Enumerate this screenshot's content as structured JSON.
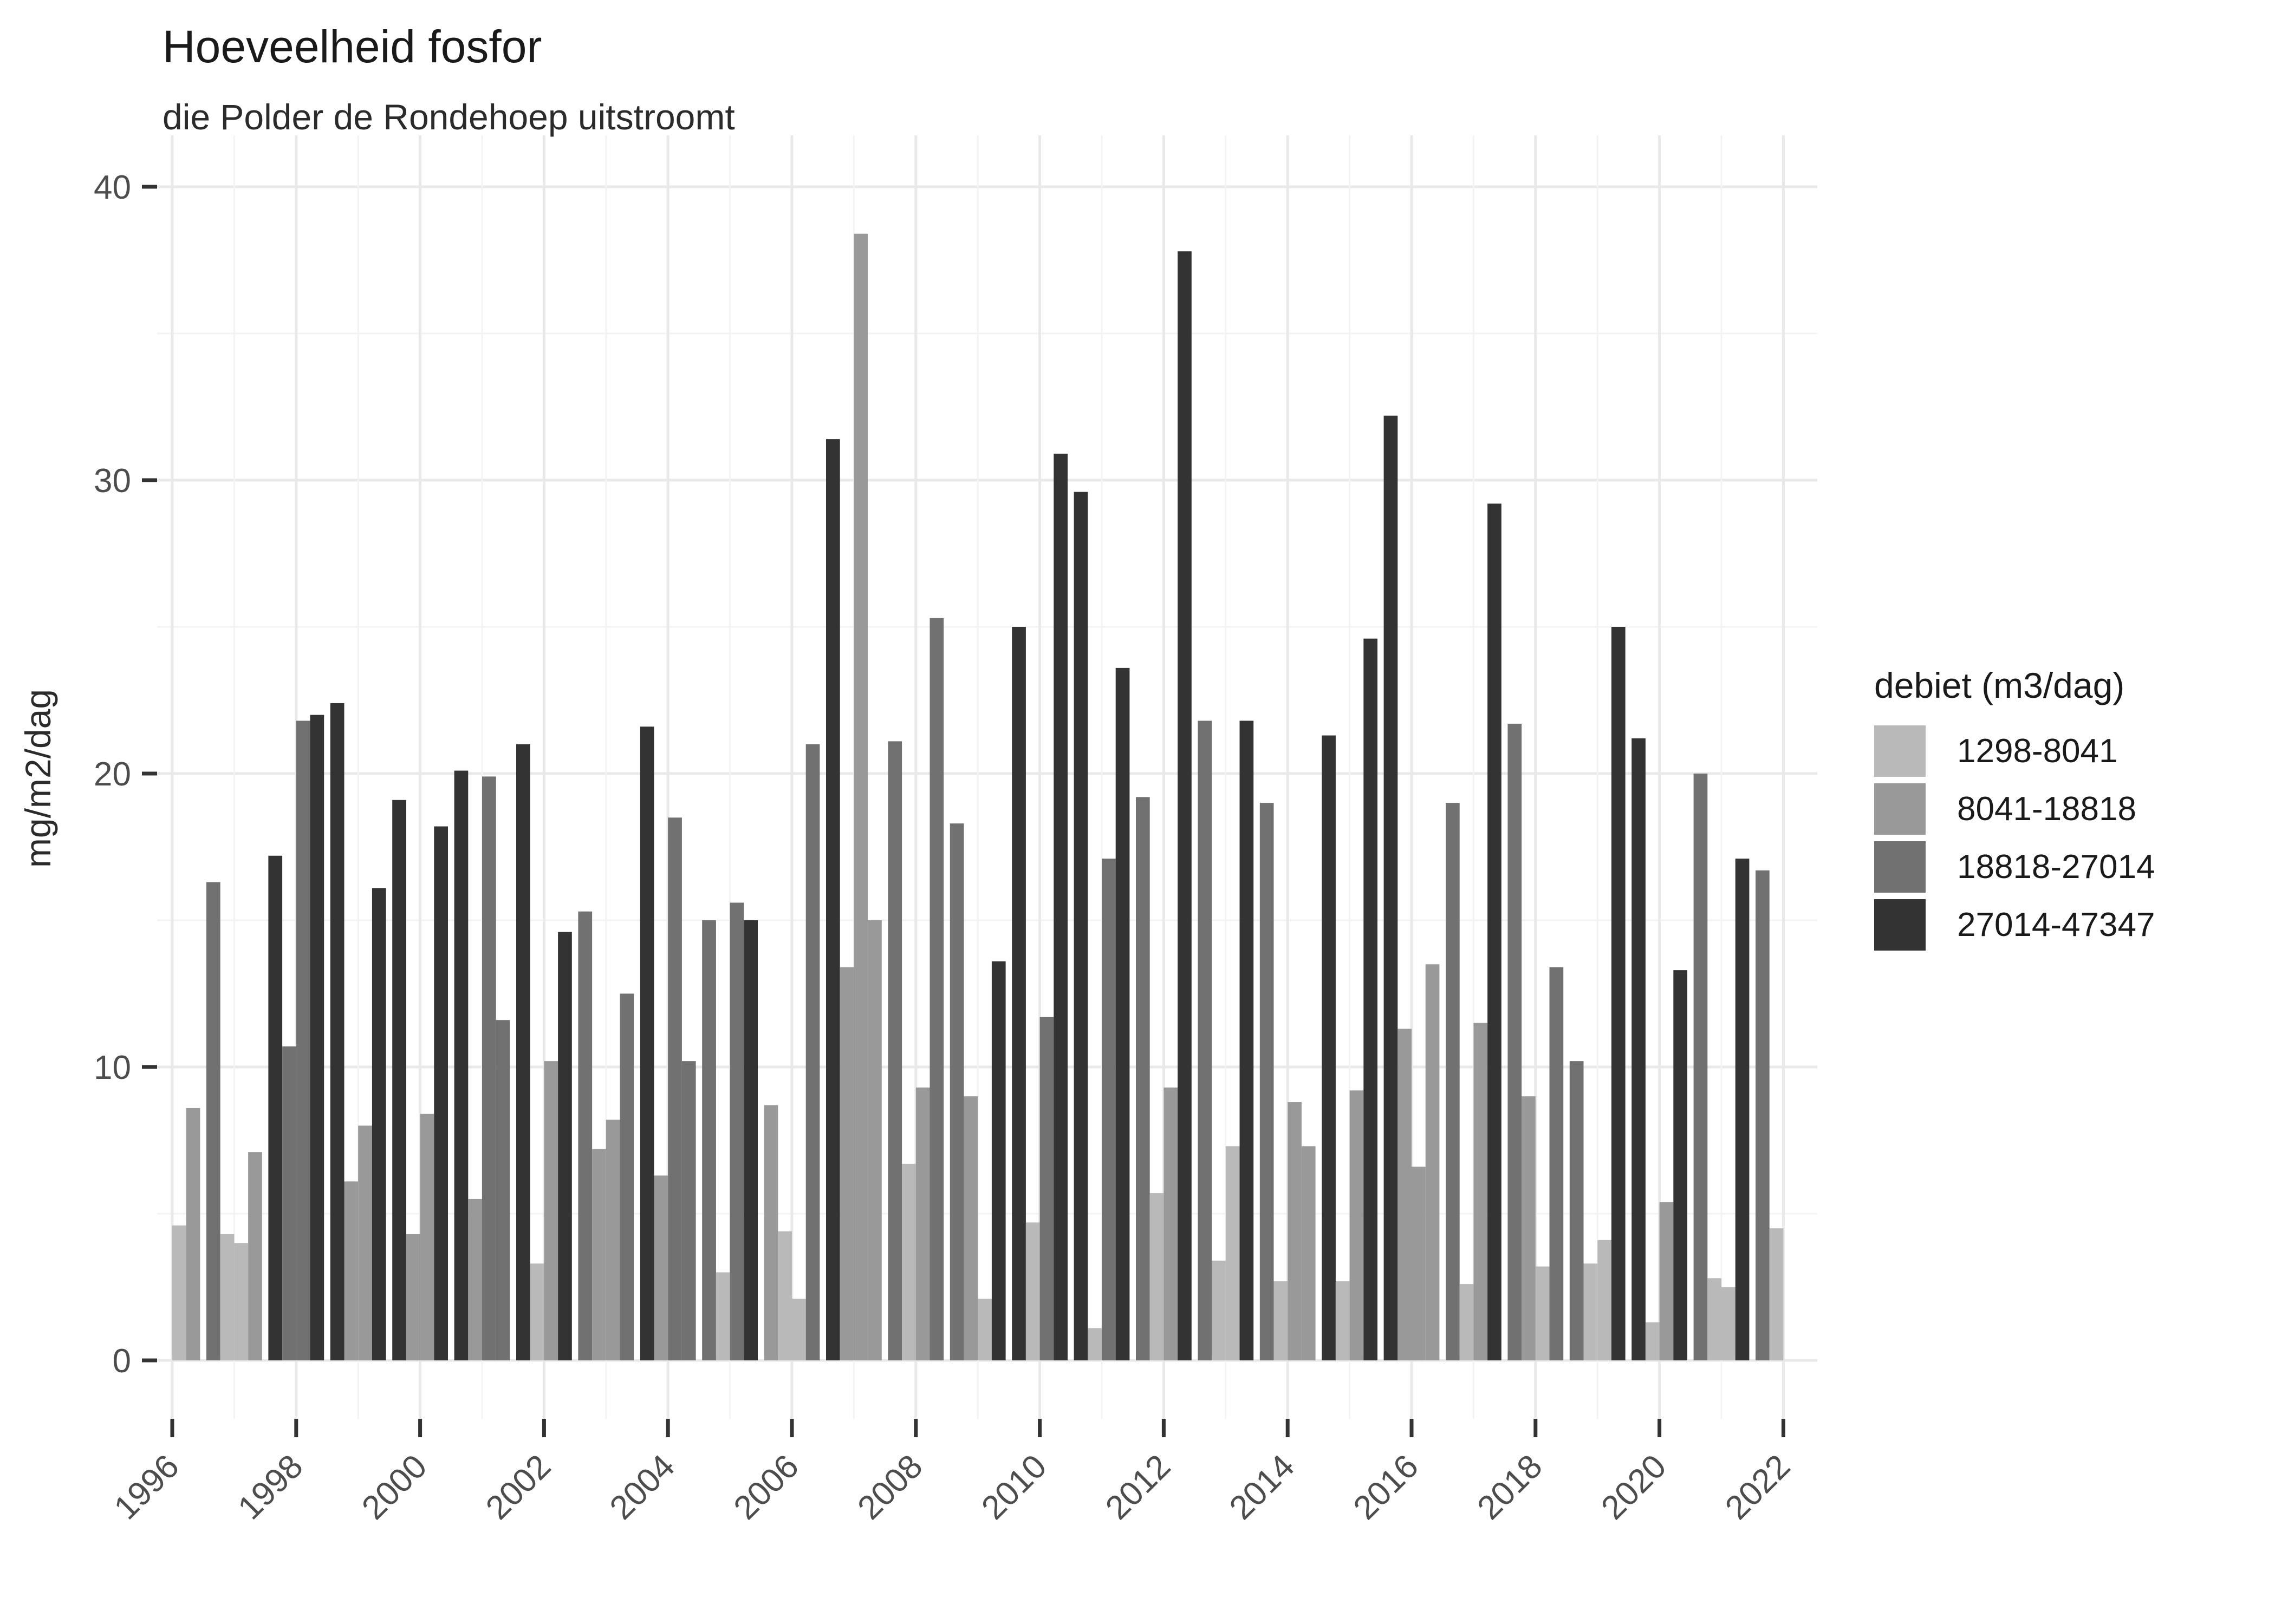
{
  "title": "Hoeveelheid fosfor",
  "subtitle": "die Polder de Rondehoep uitstroomt",
  "y_axis": {
    "label": "mg/m2/dag",
    "ticks": [
      0,
      10,
      20,
      30,
      40
    ]
  },
  "x_axis": {
    "tick_years": [
      1996,
      1998,
      2000,
      2002,
      2004,
      2006,
      2008,
      2010,
      2012,
      2014,
      2016,
      2018,
      2020,
      2022
    ]
  },
  "legend": {
    "title": "debiet (m3/dag)",
    "items": [
      {
        "label": "1298-8041",
        "color": "#b9b9b9"
      },
      {
        "label": "8041-18818",
        "color": "#999999"
      },
      {
        "label": "18818-27014",
        "color": "#717171"
      },
      {
        "label": "27014-47347",
        "color": "#333333"
      }
    ]
  },
  "chart_data": {
    "type": "bar",
    "title": "Hoeveelheid fosfor",
    "subtitle": "die Polder de Rondehoep uitstroomt",
    "ylabel": "mg/m2/dag",
    "xlabel": "",
    "ylim": [
      0,
      40
    ],
    "grid": true,
    "legend_position": "right",
    "legend_title": "debiet (m3/dag)",
    "classes": [
      "1298-8041",
      "8041-18818",
      "18818-27014",
      "27014-47347"
    ],
    "note": "q = quarter slot within year (1-4), v = mg/m2/dag, c = index into classes (debiet bin)",
    "years": [
      {
        "year": 1996,
        "bars": [
          {
            "q": 3,
            "v": 4.6,
            "c": 0
          },
          {
            "q": 4,
            "v": 8.6,
            "c": 1
          }
        ]
      },
      {
        "year": 1997,
        "bars": [
          {
            "q": 1,
            "v": 16.3,
            "c": 2
          },
          {
            "q": 2,
            "v": 4.3,
            "c": 0
          },
          {
            "q": 3,
            "v": 4.0,
            "c": 0
          },
          {
            "q": 4,
            "v": 7.1,
            "c": 1
          }
        ]
      },
      {
        "year": 1998,
        "bars": [
          {
            "q": 1,
            "v": 17.2,
            "c": 3
          },
          {
            "q": 2,
            "v": 10.7,
            "c": 2
          },
          {
            "q": 3,
            "v": 21.8,
            "c": 2
          },
          {
            "q": 4,
            "v": 22.0,
            "c": 3
          }
        ]
      },
      {
        "year": 1999,
        "bars": [
          {
            "q": 1,
            "v": 22.4,
            "c": 3
          },
          {
            "q": 2,
            "v": 6.1,
            "c": 1
          },
          {
            "q": 3,
            "v": 8.0,
            "c": 1
          },
          {
            "q": 4,
            "v": 16.1,
            "c": 3
          }
        ]
      },
      {
        "year": 2000,
        "bars": [
          {
            "q": 1,
            "v": 19.1,
            "c": 3
          },
          {
            "q": 2,
            "v": 4.3,
            "c": 1
          },
          {
            "q": 3,
            "v": 8.4,
            "c": 1
          },
          {
            "q": 4,
            "v": 18.2,
            "c": 3
          }
        ]
      },
      {
        "year": 2001,
        "bars": [
          {
            "q": 1,
            "v": 20.1,
            "c": 3
          },
          {
            "q": 2,
            "v": 5.5,
            "c": 1
          },
          {
            "q": 3,
            "v": 19.9,
            "c": 2
          },
          {
            "q": 4,
            "v": 11.6,
            "c": 2
          }
        ]
      },
      {
        "year": 2002,
        "bars": [
          {
            "q": 1,
            "v": 21.0,
            "c": 3
          },
          {
            "q": 2,
            "v": 3.3,
            "c": 0
          },
          {
            "q": 3,
            "v": 10.2,
            "c": 1
          },
          {
            "q": 4,
            "v": 14.6,
            "c": 3
          }
        ]
      },
      {
        "year": 2003,
        "bars": [
          {
            "q": 1,
            "v": 15.3,
            "c": 2
          },
          {
            "q": 2,
            "v": 7.2,
            "c": 1
          },
          {
            "q": 3,
            "v": 8.2,
            "c": 1
          },
          {
            "q": 4,
            "v": 12.5,
            "c": 2
          }
        ]
      },
      {
        "year": 2004,
        "bars": [
          {
            "q": 1,
            "v": 21.6,
            "c": 3
          },
          {
            "q": 2,
            "v": 6.3,
            "c": 1
          },
          {
            "q": 3,
            "v": 18.5,
            "c": 2
          },
          {
            "q": 4,
            "v": 10.2,
            "c": 2
          }
        ]
      },
      {
        "year": 2005,
        "bars": [
          {
            "q": 1,
            "v": 15.0,
            "c": 2
          },
          {
            "q": 2,
            "v": 3.0,
            "c": 0
          },
          {
            "q": 3,
            "v": 15.6,
            "c": 2
          },
          {
            "q": 4,
            "v": 15.0,
            "c": 3
          }
        ]
      },
      {
        "year": 2006,
        "bars": [
          {
            "q": 1,
            "v": 8.7,
            "c": 1
          },
          {
            "q": 2,
            "v": 4.4,
            "c": 0
          },
          {
            "q": 3,
            "v": 2.1,
            "c": 0
          },
          {
            "q": 4,
            "v": 21.0,
            "c": 2
          }
        ]
      },
      {
        "year": 2007,
        "bars": [
          {
            "q": 1,
            "v": 31.4,
            "c": 3
          },
          {
            "q": 2,
            "v": 13.4,
            "c": 1
          },
          {
            "q": 3,
            "v": 38.4,
            "c": 1
          },
          {
            "q": 4,
            "v": 15.0,
            "c": 1
          }
        ]
      },
      {
        "year": 2008,
        "bars": [
          {
            "q": 1,
            "v": 21.1,
            "c": 2
          },
          {
            "q": 2,
            "v": 6.7,
            "c": 0
          },
          {
            "q": 3,
            "v": 9.3,
            "c": 1
          },
          {
            "q": 4,
            "v": 25.3,
            "c": 2
          }
        ]
      },
      {
        "year": 2009,
        "bars": [
          {
            "q": 1,
            "v": 18.3,
            "c": 2
          },
          {
            "q": 2,
            "v": 9.0,
            "c": 1
          },
          {
            "q": 3,
            "v": 2.1,
            "c": 0
          },
          {
            "q": 4,
            "v": 13.6,
            "c": 3
          }
        ]
      },
      {
        "year": 2010,
        "bars": [
          {
            "q": 1,
            "v": 25.0,
            "c": 3
          },
          {
            "q": 2,
            "v": 4.7,
            "c": 0
          },
          {
            "q": 3,
            "v": 11.7,
            "c": 2
          },
          {
            "q": 4,
            "v": 30.9,
            "c": 3
          }
        ]
      },
      {
        "year": 2011,
        "bars": [
          {
            "q": 1,
            "v": 29.6,
            "c": 3
          },
          {
            "q": 2,
            "v": 1.1,
            "c": 0
          },
          {
            "q": 3,
            "v": 17.1,
            "c": 2
          },
          {
            "q": 4,
            "v": 23.6,
            "c": 3
          }
        ]
      },
      {
        "year": 2012,
        "bars": [
          {
            "q": 1,
            "v": 19.2,
            "c": 2
          },
          {
            "q": 2,
            "v": 5.7,
            "c": 0
          },
          {
            "q": 3,
            "v": 9.3,
            "c": 1
          },
          {
            "q": 4,
            "v": 37.8,
            "c": 3
          }
        ]
      },
      {
        "year": 2013,
        "bars": [
          {
            "q": 1,
            "v": 21.8,
            "c": 2
          },
          {
            "q": 2,
            "v": 3.4,
            "c": 0
          },
          {
            "q": 3,
            "v": 7.3,
            "c": 0
          },
          {
            "q": 4,
            "v": 21.8,
            "c": 3
          }
        ]
      },
      {
        "year": 2014,
        "bars": [
          {
            "q": 1,
            "v": 19.0,
            "c": 2
          },
          {
            "q": 2,
            "v": 2.7,
            "c": 0
          },
          {
            "q": 3,
            "v": 8.8,
            "c": 1
          },
          {
            "q": 4,
            "v": 7.3,
            "c": 1
          }
        ]
      },
      {
        "year": 2015,
        "bars": [
          {
            "q": 1,
            "v": 21.3,
            "c": 3
          },
          {
            "q": 2,
            "v": 2.7,
            "c": 0
          },
          {
            "q": 3,
            "v": 9.2,
            "c": 1
          },
          {
            "q": 4,
            "v": 24.6,
            "c": 3
          }
        ]
      },
      {
        "year": 2016,
        "bars": [
          {
            "q": 1,
            "v": 32.2,
            "c": 3
          },
          {
            "q": 2,
            "v": 11.3,
            "c": 1
          },
          {
            "q": 3,
            "v": 6.6,
            "c": 1
          },
          {
            "q": 4,
            "v": 13.5,
            "c": 1
          }
        ]
      },
      {
        "year": 2017,
        "bars": [
          {
            "q": 1,
            "v": 19.0,
            "c": 2
          },
          {
            "q": 2,
            "v": 2.6,
            "c": 0
          },
          {
            "q": 3,
            "v": 11.5,
            "c": 1
          },
          {
            "q": 4,
            "v": 29.2,
            "c": 3
          }
        ]
      },
      {
        "year": 2018,
        "bars": [
          {
            "q": 1,
            "v": 21.7,
            "c": 2
          },
          {
            "q": 2,
            "v": 9.0,
            "c": 1
          },
          {
            "q": 3,
            "v": 3.2,
            "c": 0
          },
          {
            "q": 4,
            "v": 13.4,
            "c": 2
          }
        ]
      },
      {
        "year": 2019,
        "bars": [
          {
            "q": 1,
            "v": 10.2,
            "c": 2
          },
          {
            "q": 2,
            "v": 3.3,
            "c": 0
          },
          {
            "q": 3,
            "v": 4.1,
            "c": 0
          },
          {
            "q": 4,
            "v": 25.0,
            "c": 3
          }
        ]
      },
      {
        "year": 2020,
        "bars": [
          {
            "q": 1,
            "v": 21.2,
            "c": 3
          },
          {
            "q": 2,
            "v": 1.3,
            "c": 0
          },
          {
            "q": 3,
            "v": 5.4,
            "c": 1
          },
          {
            "q": 4,
            "v": 13.3,
            "c": 3
          }
        ]
      },
      {
        "year": 2021,
        "bars": [
          {
            "q": 1,
            "v": 20.0,
            "c": 2
          },
          {
            "q": 2,
            "v": 2.8,
            "c": 0
          },
          {
            "q": 3,
            "v": 2.5,
            "c": 0
          },
          {
            "q": 4,
            "v": 17.1,
            "c": 3
          }
        ]
      },
      {
        "year": 2022,
        "bars": [
          {
            "q": 1,
            "v": 16.7,
            "c": 2
          },
          {
            "q": 2,
            "v": 4.5,
            "c": 0
          }
        ]
      }
    ]
  }
}
